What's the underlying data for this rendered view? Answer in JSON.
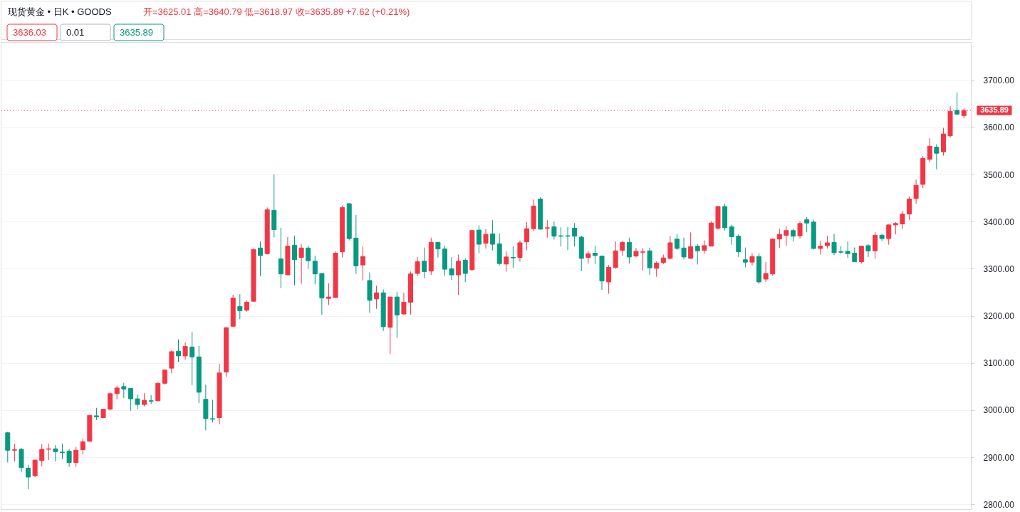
{
  "chart_data": {
    "type": "candlestick",
    "title": "现货黄金 • 日K • GOODS",
    "subtitle": "开=3625.01 高=3640.79 低=3618.97 收=3635.89 +7.62 (+0.21%)",
    "annotations": [
      "3636.03",
      "0.01",
      "3635.89"
    ],
    "categories": [
      null,
      null,
      null,
      null,
      null,
      null,
      null,
      null,
      null,
      null,
      null,
      null,
      null,
      null,
      null,
      null,
      null,
      null,
      null,
      null,
      null,
      null,
      null,
      null,
      null,
      null,
      null,
      null,
      null,
      null,
      null,
      null,
      null,
      null,
      null,
      null,
      null,
      null,
      null,
      null,
      null,
      null,
      null,
      null,
      null,
      null,
      null,
      null,
      null,
      null,
      null,
      null,
      null,
      null,
      null,
      null,
      null,
      null,
      null,
      null,
      null,
      null,
      null,
      null,
      null,
      null,
      null,
      null,
      null,
      null,
      null,
      null,
      null,
      null,
      null,
      null,
      null,
      null,
      null,
      null,
      null,
      null,
      null,
      null,
      null,
      null,
      null,
      null,
      null,
      null,
      null,
      null,
      null,
      null,
      null,
      null,
      null,
      null,
      null,
      null,
      null,
      null,
      null,
      null,
      null,
      null,
      null,
      null,
      null,
      null,
      null,
      null,
      null,
      null,
      null,
      null,
      null,
      null,
      null,
      null,
      null,
      null,
      null,
      null,
      null,
      null,
      null,
      null,
      null,
      null,
      null,
      null,
      null,
      null,
      null,
      null,
      null,
      null,
      null,
      null,
      null
    ],
    "ohlc": [
      [
        2952,
        2954,
        2889,
        2915
      ],
      [
        2915,
        2929,
        2891,
        2916
      ],
      [
        2917,
        2920,
        2868,
        2878
      ],
      [
        2877,
        2884,
        2832,
        2858
      ],
      [
        2861,
        2895,
        2858,
        2894
      ],
      [
        2893,
        2928,
        2881,
        2917
      ],
      [
        2917,
        2929,
        2894,
        2918
      ],
      [
        2918,
        2926,
        2891,
        2912
      ],
      [
        2911,
        2929,
        2896,
        2910
      ],
      [
        2913,
        2918,
        2880,
        2889
      ],
      [
        2889,
        2922,
        2880,
        2915
      ],
      [
        2916,
        2940,
        2906,
        2933
      ],
      [
        2934,
        2990,
        2933,
        2989
      ],
      [
        2988,
        3005,
        2979,
        2986
      ],
      [
        2984,
        3002,
        2983,
        3002
      ],
      [
        3002,
        3038,
        2999,
        3035
      ],
      [
        3035,
        3052,
        3023,
        3047
      ],
      [
        3050,
        3058,
        3026,
        3045
      ],
      [
        3046,
        3047,
        2999,
        3024
      ],
      [
        3024,
        3033,
        3002,
        3012
      ],
      [
        3012,
        3036,
        3008,
        3021
      ],
      [
        3020,
        3032,
        3013,
        3019
      ],
      [
        3020,
        3059,
        3018,
        3057
      ],
      [
        3057,
        3087,
        3054,
        3085
      ],
      [
        3089,
        3128,
        3078,
        3124
      ],
      [
        3125,
        3150,
        3102,
        3115
      ],
      [
        3115,
        3144,
        3107,
        3135
      ],
      [
        3134,
        3166,
        3053,
        3113
      ],
      [
        3113,
        3136,
        3015,
        3038
      ],
      [
        3023,
        3054,
        2957,
        2982
      ],
      [
        2982,
        3022,
        2974,
        2981
      ],
      [
        2984,
        3098,
        2970,
        3079
      ],
      [
        3081,
        3176,
        3071,
        3175
      ],
      [
        3178,
        3245,
        3176,
        3238
      ],
      [
        3220,
        3246,
        3193,
        3211
      ],
      [
        3212,
        3233,
        3209,
        3229
      ],
      [
        3231,
        3343,
        3230,
        3341
      ],
      [
        3344,
        3358,
        3284,
        3328
      ],
      [
        3332,
        3430,
        3330,
        3425
      ],
      [
        3424,
        3500,
        3366,
        3383
      ],
      [
        3321,
        3387,
        3259,
        3289
      ],
      [
        3287,
        3367,
        3287,
        3348
      ],
      [
        3350,
        3370,
        3265,
        3319
      ],
      [
        3324,
        3352,
        3268,
        3344
      ],
      [
        3344,
        3348,
        3300,
        3317
      ],
      [
        3316,
        3328,
        3267,
        3289
      ],
      [
        3290,
        3290,
        3202,
        3238
      ],
      [
        3237,
        3269,
        3223,
        3240
      ],
      [
        3239,
        3337,
        3238,
        3333
      ],
      [
        3336,
        3434,
        3324,
        3430
      ],
      [
        3438,
        3439,
        3360,
        3364
      ],
      [
        3365,
        3414,
        3289,
        3306
      ],
      [
        3308,
        3347,
        3275,
        3326
      ],
      [
        3275,
        3292,
        3207,
        3233
      ],
      [
        3236,
        3264,
        3215,
        3249
      ],
      [
        3249,
        3256,
        3168,
        3177
      ],
      [
        3176,
        3240,
        3119,
        3240
      ],
      [
        3240,
        3251,
        3154,
        3202
      ],
      [
        3204,
        3249,
        3202,
        3229
      ],
      [
        3229,
        3294,
        3203,
        3289
      ],
      [
        3290,
        3325,
        3285,
        3315
      ],
      [
        3316,
        3345,
        3280,
        3294
      ],
      [
        3295,
        3366,
        3287,
        3356
      ],
      [
        3356,
        3357,
        3324,
        3342
      ],
      [
        3342,
        3349,
        3285,
        3299
      ],
      [
        3300,
        3325,
        3276,
        3287
      ],
      [
        3287,
        3330,
        3244,
        3316
      ],
      [
        3318,
        3322,
        3272,
        3290
      ],
      [
        3298,
        3382,
        3295,
        3381
      ],
      [
        3382,
        3392,
        3333,
        3352
      ],
      [
        3354,
        3384,
        3343,
        3373
      ],
      [
        3374,
        3403,
        3339,
        3352
      ],
      [
        3353,
        3375,
        3307,
        3311
      ],
      [
        3310,
        3337,
        3294,
        3325
      ],
      [
        3324,
        3348,
        3302,
        3323
      ],
      [
        3324,
        3360,
        3315,
        3355
      ],
      [
        3357,
        3399,
        3339,
        3385
      ],
      [
        3385,
        3447,
        3380,
        3433
      ],
      [
        3448,
        3452,
        3383,
        3384
      ],
      [
        3386,
        3403,
        3366,
        3387
      ],
      [
        3389,
        3400,
        3362,
        3369
      ],
      [
        3370,
        3388,
        3347,
        3369
      ],
      [
        3370,
        3389,
        3340,
        3369
      ],
      [
        3386,
        3397,
        3347,
        3369
      ],
      [
        3367,
        3370,
        3295,
        3322
      ],
      [
        3324,
        3337,
        3311,
        3332
      ],
      [
        3333,
        3349,
        3310,
        3328
      ],
      [
        3327,
        3328,
        3255,
        3274
      ],
      [
        3272,
        3308,
        3247,
        3303
      ],
      [
        3303,
        3358,
        3300,
        3338
      ],
      [
        3339,
        3359,
        3328,
        3356
      ],
      [
        3356,
        3366,
        3311,
        3325
      ],
      [
        3327,
        3344,
        3324,
        3337
      ],
      [
        3335,
        3344,
        3296,
        3336
      ],
      [
        3338,
        3345,
        3287,
        3302
      ],
      [
        3301,
        3316,
        3283,
        3312
      ],
      [
        3313,
        3330,
        3310,
        3323
      ],
      [
        3322,
        3369,
        3320,
        3355
      ],
      [
        3363,
        3374,
        3340,
        3343
      ],
      [
        3344,
        3366,
        3320,
        3325
      ],
      [
        3322,
        3377,
        3321,
        3347
      ],
      [
        3348,
        3352,
        3309,
        3338
      ],
      [
        3339,
        3360,
        3332,
        3349
      ],
      [
        3348,
        3401,
        3348,
        3397
      ],
      [
        3386,
        3433,
        3383,
        3432
      ],
      [
        3432,
        3438,
        3381,
        3387
      ],
      [
        3389,
        3393,
        3351,
        3368
      ],
      [
        3369,
        3373,
        3325,
        3336
      ],
      [
        3319,
        3345,
        3303,
        3314
      ],
      [
        3314,
        3333,
        3307,
        3326
      ],
      [
        3326,
        3333,
        3268,
        3272
      ],
      [
        3278,
        3314,
        3272,
        3290
      ],
      [
        3289,
        3364,
        3285,
        3363
      ],
      [
        3363,
        3385,
        3344,
        3373
      ],
      [
        3371,
        3390,
        3349,
        3381
      ],
      [
        3381,
        3385,
        3358,
        3369
      ],
      [
        3370,
        3401,
        3364,
        3396
      ],
      [
        3404,
        3410,
        3378,
        3397
      ],
      [
        3399,
        3404,
        3341,
        3343
      ],
      [
        3343,
        3359,
        3330,
        3348
      ],
      [
        3349,
        3370,
        3343,
        3355
      ],
      [
        3356,
        3374,
        3329,
        3334
      ],
      [
        3336,
        3348,
        3332,
        3335
      ],
      [
        3337,
        3358,
        3323,
        3332
      ],
      [
        3333,
        3345,
        3314,
        3315
      ],
      [
        3315,
        3349,
        3311,
        3348
      ],
      [
        3349,
        3352,
        3325,
        3338
      ],
      [
        3338,
        3378,
        3321,
        3371
      ],
      [
        3371,
        3375,
        3359,
        3364
      ],
      [
        3364,
        3394,
        3351,
        3393
      ],
      [
        3393,
        3399,
        3373,
        3396
      ],
      [
        3395,
        3423,
        3384,
        3416
      ],
      [
        3416,
        3453,
        3404,
        3448
      ],
      [
        3449,
        3489,
        3438,
        3477
      ],
      [
        3479,
        3539,
        3471,
        3534
      ],
      [
        3532,
        3577,
        3526,
        3560
      ],
      [
        3558,
        3564,
        3511,
        3545
      ],
      [
        3548,
        3599,
        3540,
        3586
      ],
      [
        3582,
        3645,
        3578,
        3634
      ],
      [
        3636,
        3674,
        3627,
        3628
      ],
      [
        3625.01,
        3640.79,
        3618.97,
        3635.89
      ]
    ],
    "colors": [
      "#089981",
      "#f23645",
      "#089981",
      "#089981",
      "#f23645",
      "#f23645",
      "#f23645",
      "#089981",
      "#089981",
      "#089981",
      "#f23645",
      "#f23645",
      "#f23645",
      "#089981",
      "#f23645",
      "#f23645",
      "#f23645",
      "#089981",
      "#089981",
      "#089981",
      "#f23645",
      "#089981",
      "#f23645",
      "#f23645",
      "#f23645",
      "#089981",
      "#f23645",
      "#089981",
      "#089981",
      "#089981",
      "#089981",
      "#f23645",
      "#f23645",
      "#f23645",
      "#089981",
      "#f23645",
      "#f23645",
      "#089981",
      "#f23645",
      "#089981",
      "#089981",
      "#f23645",
      "#089981",
      "#f23645",
      "#089981",
      "#089981",
      "#089981",
      "#f23645",
      "#f23645",
      "#f23645",
      "#089981",
      "#089981",
      "#f23645",
      "#089981",
      "#f23645",
      "#089981",
      "#f23645",
      "#089981",
      "#f23645",
      "#f23645",
      "#f23645",
      "#089981",
      "#f23645",
      "#089981",
      "#089981",
      "#089981",
      "#f23645",
      "#089981",
      "#f23645",
      "#089981",
      "#f23645",
      "#089981",
      "#089981",
      "#f23645",
      "#089981",
      "#f23645",
      "#f23645",
      "#f23645",
      "#089981",
      "#f23645",
      "#089981",
      "#089981",
      "#089981",
      "#089981",
      "#089981",
      "#f23645",
      "#089981",
      "#089981",
      "#f23645",
      "#f23645",
      "#f23645",
      "#089981",
      "#f23645",
      "#f23645",
      "#089981",
      "#f23645",
      "#f23645",
      "#f23645",
      "#089981",
      "#089981",
      "#f23645",
      "#089981",
      "#f23645",
      "#f23645",
      "#f23645",
      "#089981",
      "#089981",
      "#089981",
      "#089981",
      "#f23645",
      "#089981",
      "#f23645",
      "#f23645",
      "#f23645",
      "#f23645",
      "#089981",
      "#f23645",
      "#089981",
      "#089981",
      "#f23645",
      "#f23645",
      "#089981",
      "#089981",
      "#089981",
      "#089981",
      "#f23645",
      "#089981",
      "#f23645",
      "#089981",
      "#f23645",
      "#f23645",
      "#f23645",
      "#f23645",
      "#f23645",
      "#f23645",
      "#f23645",
      "#089981",
      "#f23645",
      "#f23645",
      "#089981",
      "#f23645"
    ],
    "ylim": [
      2790,
      3781
    ],
    "yticks": [
      {
        "value": 2800,
        "label": "2800.00"
      },
      {
        "value": 2900,
        "label": "2900.00"
      },
      {
        "value": 3000,
        "label": "3000.00"
      },
      {
        "value": 3100,
        "label": "3100.00"
      },
      {
        "value": 3200,
        "label": "3200.00"
      },
      {
        "value": 3300,
        "label": "3300.00"
      },
      {
        "value": 3400,
        "label": "3400.00"
      },
      {
        "value": 3500,
        "label": "3500.00"
      },
      {
        "value": 3600,
        "label": "3600.00"
      },
      {
        "value": 3700,
        "label": "3700.00"
      }
    ],
    "ref_lines": [
      {
        "axis": "y",
        "value": 3635.89,
        "label": "3635.89",
        "color": "#f23645",
        "line_style": "dotted"
      }
    ],
    "grid": "y",
    "tick_labels": "y"
  }
}
